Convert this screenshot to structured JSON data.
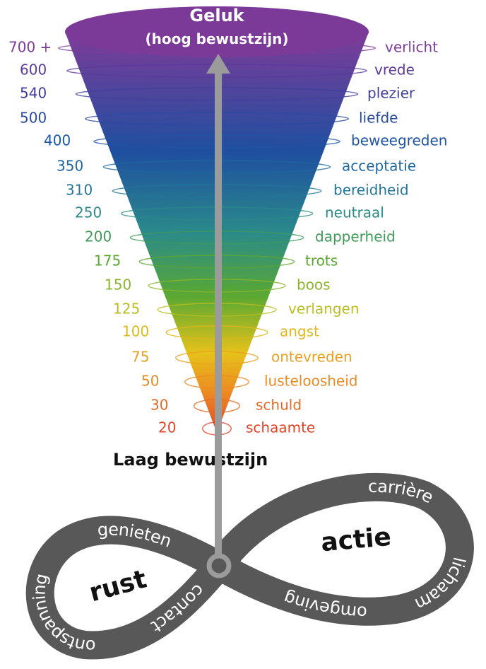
{
  "top": {
    "title": "Geluk",
    "subtitle": "(hoog bewustzijn)"
  },
  "levels": [
    {
      "value": "700 +",
      "label": "verlicht"
    },
    {
      "value": "600",
      "label": "vrede"
    },
    {
      "value": "540",
      "label": "plezier"
    },
    {
      "value": "500",
      "label": "liefde"
    },
    {
      "value": "400",
      "label": "beweegreden"
    },
    {
      "value": "350",
      "label": "acceptatie"
    },
    {
      "value": "310",
      "label": "bereidheid"
    },
    {
      "value": "250",
      "label": "neutraal"
    },
    {
      "value": "200",
      "label": "dapperheid"
    },
    {
      "value": "175",
      "label": "trots"
    },
    {
      "value": "150",
      "label": "boos"
    },
    {
      "value": "125",
      "label": "verlangen"
    },
    {
      "value": "100",
      "label": "angst"
    },
    {
      "value": "75",
      "label": "ontevreden"
    },
    {
      "value": "50",
      "label": "lusteloosheid"
    },
    {
      "value": "30",
      "label": "schuld"
    },
    {
      "value": "20",
      "label": "schaamte"
    }
  ],
  "bottom_label": "Laag bewustzijn",
  "infinity": {
    "left": {
      "title": "rust",
      "words": [
        "genieten",
        "ontspanning",
        "contact"
      ]
    },
    "right": {
      "title": "actie",
      "words": [
        "carrière",
        "lichaam",
        "omgeving"
      ]
    }
  }
}
